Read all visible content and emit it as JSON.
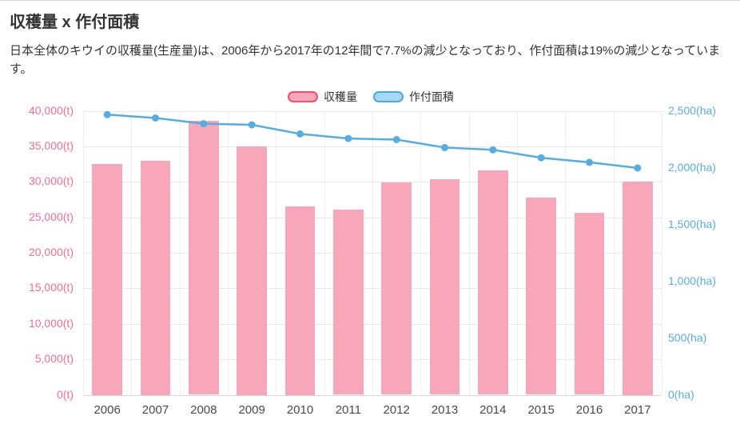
{
  "page": {
    "title": "収穫量 x 作付面積",
    "description": "日本全体のキウイの収穫量(生産量)は、2006年から2017年の12年間で7.7%の減少となっており、作付面積は19%の減少となっています。"
  },
  "legend": {
    "items": [
      {
        "label": "収穫量",
        "fill": "#f8a7ba",
        "border": "#f0506e"
      },
      {
        "label": "作付面積",
        "fill": "#a7d7f3",
        "border": "#4aa8e0"
      }
    ]
  },
  "chart_data": {
    "type": "bar+line",
    "title": "収穫量 x 作付面積",
    "categories": [
      "2006",
      "2007",
      "2008",
      "2009",
      "2010",
      "2011",
      "2012",
      "2013",
      "2014",
      "2015",
      "2016",
      "2017"
    ],
    "series": [
      {
        "name": "収穫量",
        "type": "bar",
        "yaxis": "left",
        "color": "#f8a7ba",
        "values": [
          32500,
          33000,
          38600,
          35000,
          26500,
          26100,
          29900,
          30400,
          31600,
          27800,
          25600,
          30000
        ]
      },
      {
        "name": "作付面積",
        "type": "line",
        "yaxis": "right",
        "color": "#55ade4",
        "values": [
          2470,
          2440,
          2390,
          2380,
          2300,
          2260,
          2250,
          2180,
          2160,
          2090,
          2050,
          2000
        ]
      }
    ],
    "left_axis": {
      "min": 0,
      "max": 40000,
      "step": 5000,
      "unit": "(t)",
      "color": "#f56d91",
      "tick_labels": [
        "40,000(t)",
        "35,000(t)",
        "30,000(t)",
        "25,000(t)",
        "20,000(t)",
        "15,000(t)",
        "10,000(t)",
        "5,000(t)",
        "0(t)"
      ]
    },
    "right_axis": {
      "min": 0,
      "max": 2500,
      "step": 500,
      "unit": "(ha)",
      "color": "#55ade4",
      "tick_labels": [
        "2,500(ha)",
        "2,000(ha)",
        "1,500(ha)",
        "1,000(ha)",
        "500(ha)",
        "0(ha)"
      ]
    },
    "grid": true,
    "legend_position": "top"
  }
}
